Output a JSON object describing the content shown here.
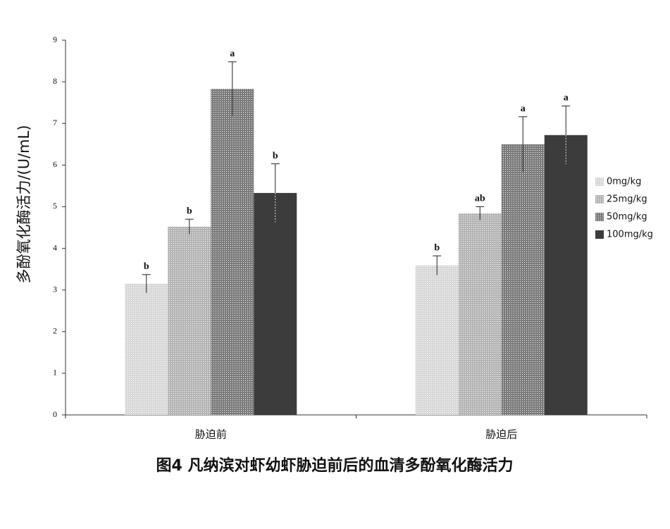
{
  "chart_data": {
    "type": "bar",
    "title": "图4 凡纳滨对虾幼虾胁迫前后的血清多酚氧化酶活力",
    "y_label": "多酚氧化酶活力/(U/mL)",
    "categories": [
      "胁迫前",
      "胁迫后"
    ],
    "series": [
      {
        "name": "0mg/kg",
        "color": "#d8d8d8",
        "values": [
          3.15,
          3.59
        ],
        "errors": [
          0.22,
          0.23
        ],
        "letters": [
          "b",
          "b"
        ]
      },
      {
        "name": "25mg/kg",
        "color": "#b4b4b4",
        "values": [
          4.52,
          4.84
        ],
        "errors": [
          0.18,
          0.16
        ],
        "letters": [
          "b",
          "ab"
        ]
      },
      {
        "name": "50mg/kg",
        "color": "#7a7a7a",
        "values": [
          7.83,
          6.5
        ],
        "errors": [
          0.65,
          0.66
        ],
        "letters": [
          "a",
          "a"
        ]
      },
      {
        "name": "100mg/kg",
        "color": "#3c3c3c",
        "values": [
          5.33,
          6.72
        ],
        "errors": [
          0.7,
          0.7
        ],
        "letters": [
          "b",
          "a"
        ]
      }
    ],
    "ylim": [
      0,
      9
    ],
    "yticks": [
      0,
      1,
      2,
      3,
      4,
      5,
      6,
      7,
      8,
      9
    ],
    "legend": "right"
  }
}
